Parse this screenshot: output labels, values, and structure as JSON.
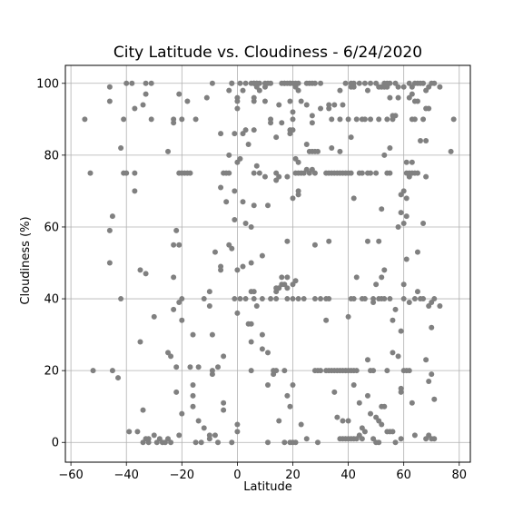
{
  "chart_data": {
    "type": "scatter",
    "title": "City Latitude vs. Cloudiness - 6/24/2020",
    "xlabel": "Latitude",
    "ylabel": "Cloudiness (%)",
    "xlim": [
      -62,
      84
    ],
    "ylim": [
      -5.5,
      105
    ],
    "xticks": [
      -60,
      -40,
      -20,
      0,
      20,
      40,
      60,
      80
    ],
    "yticks": [
      0,
      20,
      40,
      60,
      80,
      100
    ],
    "grid": true,
    "marker_color": "#808080",
    "points": [
      [
        -55,
        90
      ],
      [
        -53,
        75
      ],
      [
        -52,
        20
      ],
      [
        -46,
        99
      ],
      [
        -46,
        95
      ],
      [
        -46,
        59
      ],
      [
        -46,
        50
      ],
      [
        -45,
        63
      ],
      [
        -45,
        20
      ],
      [
        -43,
        18
      ],
      [
        -42,
        40
      ],
      [
        -42,
        82
      ],
      [
        -41,
        75
      ],
      [
        -41,
        90
      ],
      [
        -40,
        75
      ],
      [
        -40,
        100
      ],
      [
        -39,
        3
      ],
      [
        -38,
        100
      ],
      [
        -37,
        93
      ],
      [
        -37,
        75
      ],
      [
        -37,
        70
      ],
      [
        -36,
        3
      ],
      [
        -35,
        28
      ],
      [
        -35,
        48
      ],
      [
        -34,
        94
      ],
      [
        -34,
        9
      ],
      [
        -34,
        0
      ],
      [
        -33,
        97
      ],
      [
        -33,
        100
      ],
      [
        -33,
        47
      ],
      [
        -33,
        1
      ],
      [
        -32,
        1
      ],
      [
        -32,
        0
      ],
      [
        -31,
        100
      ],
      [
        -31,
        90
      ],
      [
        -30,
        35
      ],
      [
        -30,
        2
      ],
      [
        -29,
        0
      ],
      [
        -28,
        1
      ],
      [
        -27,
        0
      ],
      [
        -26,
        0
      ],
      [
        -25,
        1
      ],
      [
        -25,
        81
      ],
      [
        -25,
        25
      ],
      [
        -24,
        24
      ],
      [
        -24,
        0
      ],
      [
        -23,
        90
      ],
      [
        -23,
        89
      ],
      [
        -23,
        55
      ],
      [
        -23,
        46
      ],
      [
        -23,
        37
      ],
      [
        -22,
        21
      ],
      [
        -22,
        14
      ],
      [
        -22,
        59
      ],
      [
        -21,
        55
      ],
      [
        -21,
        39
      ],
      [
        -21,
        2
      ],
      [
        -21,
        97
      ],
      [
        -21,
        75
      ],
      [
        -20,
        40
      ],
      [
        -20,
        34
      ],
      [
        -20,
        8
      ],
      [
        -20,
        90
      ],
      [
        -20,
        75
      ],
      [
        -19,
        75
      ],
      [
        -18,
        95
      ],
      [
        -18,
        75
      ],
      [
        -17,
        75
      ],
      [
        -17,
        21
      ],
      [
        -16,
        16
      ],
      [
        -16,
        13
      ],
      [
        -16,
        10
      ],
      [
        -16,
        30
      ],
      [
        -15,
        90
      ],
      [
        -15,
        0
      ],
      [
        -14,
        21
      ],
      [
        -14,
        6
      ],
      [
        -13,
        0
      ],
      [
        -12,
        4
      ],
      [
        -12,
        40
      ],
      [
        -11,
        96
      ],
      [
        -10,
        1
      ],
      [
        -10,
        2
      ],
      [
        -10,
        38
      ],
      [
        -10,
        42
      ],
      [
        -9,
        100
      ],
      [
        -9,
        30
      ],
      [
        -9,
        20
      ],
      [
        -9,
        19
      ],
      [
        -8,
        2
      ],
      [
        -8,
        53
      ],
      [
        -7,
        21
      ],
      [
        -7,
        0
      ],
      [
        -6,
        86
      ],
      [
        -6,
        71
      ],
      [
        -6,
        48
      ],
      [
        -6,
        49
      ],
      [
        -5,
        24
      ],
      [
        -5,
        11
      ],
      [
        -5,
        9
      ],
      [
        -5,
        75
      ],
      [
        -4,
        75
      ],
      [
        -4,
        67
      ],
      [
        -3,
        98
      ],
      [
        -3,
        80
      ],
      [
        -3,
        55
      ],
      [
        -3,
        75
      ],
      [
        -2,
        54
      ],
      [
        -2,
        100
      ],
      [
        -2,
        100
      ],
      [
        -2,
        0
      ],
      [
        -1,
        86
      ],
      [
        -1,
        70
      ],
      [
        -1,
        62
      ],
      [
        -1,
        40
      ],
      [
        0,
        93
      ],
      [
        0,
        95
      ],
      [
        0,
        96
      ],
      [
        0,
        78
      ],
      [
        0,
        48
      ],
      [
        0,
        36
      ],
      [
        0,
        5
      ],
      [
        0,
        3
      ],
      [
        1,
        79
      ],
      [
        1,
        100
      ],
      [
        1,
        40
      ],
      [
        2,
        98
      ],
      [
        2,
        86
      ],
      [
        2,
        67
      ],
      [
        2,
        49
      ],
      [
        3,
        100
      ],
      [
        3,
        87
      ],
      [
        3,
        61
      ],
      [
        3,
        40
      ],
      [
        4,
        83
      ],
      [
        4,
        33
      ],
      [
        5,
        100
      ],
      [
        5,
        60
      ],
      [
        5,
        50
      ],
      [
        5,
        42
      ],
      [
        5,
        33
      ],
      [
        5,
        28
      ],
      [
        5,
        20
      ],
      [
        6,
        100
      ],
      [
        6,
        100
      ],
      [
        6,
        100
      ],
      [
        6,
        96
      ],
      [
        6,
        95
      ],
      [
        6,
        87
      ],
      [
        6,
        75
      ],
      [
        6,
        66
      ],
      [
        6,
        42
      ],
      [
        6,
        40
      ],
      [
        7,
        100
      ],
      [
        7,
        100
      ],
      [
        7,
        99
      ],
      [
        7,
        77
      ],
      [
        7,
        38
      ],
      [
        8,
        100
      ],
      [
        8,
        98
      ],
      [
        8,
        75
      ],
      [
        9,
        52
      ],
      [
        9,
        40
      ],
      [
        9,
        30
      ],
      [
        9,
        26
      ],
      [
        10,
        99
      ],
      [
        10,
        95
      ],
      [
        10,
        100
      ],
      [
        10,
        74
      ],
      [
        11,
        100
      ],
      [
        11,
        66
      ],
      [
        11,
        16
      ],
      [
        11,
        25
      ],
      [
        11,
        0
      ],
      [
        12,
        100
      ],
      [
        12,
        89
      ],
      [
        12,
        90
      ],
      [
        12,
        40
      ],
      [
        13,
        20
      ],
      [
        13,
        19
      ],
      [
        14,
        85
      ],
      [
        14,
        75
      ],
      [
        14,
        73
      ],
      [
        14,
        42
      ],
      [
        14,
        40
      ],
      [
        14,
        20
      ],
      [
        14,
        43
      ],
      [
        15,
        94
      ],
      [
        15,
        74
      ],
      [
        15,
        43
      ],
      [
        15,
        6
      ],
      [
        16,
        100
      ],
      [
        16,
        89
      ],
      [
        16,
        46
      ],
      [
        16,
        44
      ],
      [
        17,
        44
      ],
      [
        17,
        100
      ],
      [
        17,
        100
      ],
      [
        17,
        20
      ],
      [
        17,
        0
      ],
      [
        18,
        100
      ],
      [
        18,
        74
      ],
      [
        18,
        56
      ],
      [
        18,
        46
      ],
      [
        18,
        43
      ],
      [
        18,
        40
      ],
      [
        18,
        13
      ],
      [
        19,
        100
      ],
      [
        19,
        100
      ],
      [
        19,
        95
      ],
      [
        19,
        87
      ],
      [
        19,
        86
      ],
      [
        19,
        10
      ],
      [
        19,
        0
      ],
      [
        20,
        100
      ],
      [
        20,
        92
      ],
      [
        20,
        90
      ],
      [
        20,
        87
      ],
      [
        20,
        68
      ],
      [
        20,
        44
      ],
      [
        20,
        40
      ],
      [
        20,
        16
      ],
      [
        20,
        0
      ],
      [
        21,
        100
      ],
      [
        21,
        99
      ],
      [
        21,
        79
      ],
      [
        21,
        75
      ],
      [
        21,
        45
      ],
      [
        21,
        0
      ],
      [
        22,
        100
      ],
      [
        22,
        98
      ],
      [
        22,
        78
      ],
      [
        22,
        75
      ],
      [
        22,
        70
      ],
      [
        22,
        69
      ],
      [
        22,
        40
      ],
      [
        23,
        95
      ],
      [
        23,
        75
      ],
      [
        23,
        5
      ],
      [
        24,
        75
      ],
      [
        24,
        40
      ],
      [
        25,
        100
      ],
      [
        25,
        94
      ],
      [
        25,
        83
      ],
      [
        25,
        76
      ],
      [
        25,
        1
      ],
      [
        26,
        100
      ],
      [
        26,
        81
      ],
      [
        26,
        75
      ],
      [
        27,
        100
      ],
      [
        27,
        91
      ],
      [
        27,
        89
      ],
      [
        27,
        81
      ],
      [
        27,
        76
      ],
      [
        28,
        100
      ],
      [
        28,
        81
      ],
      [
        28,
        75
      ],
      [
        28,
        55
      ],
      [
        28,
        40
      ],
      [
        28,
        20
      ],
      [
        29,
        81
      ],
      [
        29,
        20
      ],
      [
        29,
        0
      ],
      [
        30,
        100
      ],
      [
        30,
        93
      ],
      [
        30,
        40
      ],
      [
        30,
        20
      ],
      [
        32,
        75
      ],
      [
        32,
        40
      ],
      [
        32,
        34
      ],
      [
        32,
        20
      ],
      [
        33,
        94
      ],
      [
        33,
        93
      ],
      [
        33,
        75
      ],
      [
        33,
        56
      ],
      [
        33,
        40
      ],
      [
        33,
        20
      ],
      [
        34,
        90
      ],
      [
        34,
        82
      ],
      [
        34,
        75
      ],
      [
        34,
        20
      ],
      [
        35,
        94
      ],
      [
        35,
        75
      ],
      [
        35,
        14
      ],
      [
        35,
        20
      ],
      [
        36,
        75
      ],
      [
        36,
        20
      ],
      [
        36,
        7
      ],
      [
        37,
        98
      ],
      [
        37,
        90
      ],
      [
        37,
        81
      ],
      [
        37,
        75
      ],
      [
        37,
        20
      ],
      [
        37,
        1
      ],
      [
        38,
        94
      ],
      [
        38,
        75
      ],
      [
        38,
        20
      ],
      [
        38,
        6
      ],
      [
        38,
        1
      ],
      [
        39,
        100
      ],
      [
        39,
        75
      ],
      [
        39,
        20
      ],
      [
        39,
        1
      ],
      [
        40,
        90
      ],
      [
        40,
        75
      ],
      [
        40,
        35
      ],
      [
        40,
        20
      ],
      [
        40,
        6
      ],
      [
        40,
        1
      ],
      [
        41,
        100
      ],
      [
        41,
        99
      ],
      [
        41,
        85
      ],
      [
        41,
        75
      ],
      [
        41,
        40
      ],
      [
        41,
        20
      ],
      [
        41,
        1
      ],
      [
        42,
        100
      ],
      [
        42,
        99
      ],
      [
        42,
        68
      ],
      [
        42,
        40
      ],
      [
        42,
        20
      ],
      [
        42,
        16
      ],
      [
        42,
        1
      ],
      [
        43,
        90
      ],
      [
        43,
        46
      ],
      [
        43,
        20
      ],
      [
        43,
        1
      ],
      [
        44,
        100
      ],
      [
        44,
        75
      ],
      [
        44,
        11
      ],
      [
        44,
        2
      ],
      [
        45,
        90
      ],
      [
        45,
        75
      ],
      [
        45,
        40
      ],
      [
        45,
        4
      ],
      [
        45,
        1
      ],
      [
        46,
        100
      ],
      [
        46,
        90
      ],
      [
        46,
        40
      ],
      [
        46,
        3
      ],
      [
        47,
        98
      ],
      [
        47,
        75
      ],
      [
        47,
        56
      ],
      [
        47,
        23
      ],
      [
        47,
        13
      ],
      [
        48,
        100
      ],
      [
        48,
        90
      ],
      [
        48,
        75
      ],
      [
        48,
        20
      ],
      [
        48,
        8
      ],
      [
        49,
        40
      ],
      [
        49,
        39
      ],
      [
        49,
        20
      ],
      [
        49,
        1
      ],
      [
        50,
        100
      ],
      [
        50,
        75
      ],
      [
        50,
        44
      ],
      [
        50,
        7
      ],
      [
        50,
        0
      ],
      [
        51,
        99
      ],
      [
        51,
        90
      ],
      [
        51,
        56
      ],
      [
        51,
        40
      ],
      [
        51,
        6
      ],
      [
        51,
        0
      ],
      [
        52,
        99
      ],
      [
        52,
        65
      ],
      [
        52,
        46
      ],
      [
        52,
        40
      ],
      [
        52,
        10
      ],
      [
        52,
        5
      ],
      [
        53,
        100
      ],
      [
        53,
        99
      ],
      [
        53,
        80
      ],
      [
        53,
        48
      ],
      [
        53,
        40
      ],
      [
        53,
        10
      ],
      [
        54,
        100
      ],
      [
        54,
        99
      ],
      [
        54,
        90
      ],
      [
        54,
        75
      ],
      [
        54,
        20
      ],
      [
        54,
        3
      ],
      [
        55,
        100
      ],
      [
        55,
        96
      ],
      [
        55,
        82
      ],
      [
        55,
        75
      ],
      [
        55,
        40
      ],
      [
        55,
        3
      ],
      [
        56,
        91
      ],
      [
        56,
        90
      ],
      [
        56,
        34
      ],
      [
        56,
        25
      ],
      [
        56,
        3
      ],
      [
        57,
        100
      ],
      [
        57,
        91
      ],
      [
        57,
        37
      ],
      [
        57,
        0
      ],
      [
        58,
        99
      ],
      [
        58,
        96
      ],
      [
        58,
        60
      ],
      [
        58,
        24
      ],
      [
        59,
        69
      ],
      [
        59,
        64
      ],
      [
        59,
        31
      ],
      [
        59,
        15
      ],
      [
        59,
        14
      ],
      [
        59,
        1
      ],
      [
        60,
        99
      ],
      [
        60,
        70
      ],
      [
        60,
        61
      ],
      [
        60,
        44
      ],
      [
        60,
        40
      ],
      [
        60,
        20
      ],
      [
        61,
        78
      ],
      [
        61,
        75
      ],
      [
        61,
        68
      ],
      [
        61,
        63
      ],
      [
        61,
        51
      ],
      [
        61,
        20
      ],
      [
        62,
        100
      ],
      [
        62,
        96
      ],
      [
        62,
        75
      ],
      [
        62,
        74
      ],
      [
        62,
        39
      ],
      [
        62,
        20
      ],
      [
        63,
        99
      ],
      [
        63,
        97
      ],
      [
        63,
        90
      ],
      [
        63,
        75
      ],
      [
        63,
        78
      ],
      [
        63,
        11
      ],
      [
        64,
        100
      ],
      [
        64,
        95
      ],
      [
        64,
        90
      ],
      [
        64,
        75
      ],
      [
        64,
        40
      ],
      [
        64,
        2
      ],
      [
        65,
        100
      ],
      [
        65,
        95
      ],
      [
        65,
        75
      ],
      [
        65,
        53
      ],
      [
        65,
        42
      ],
      [
        66,
        100
      ],
      [
        66,
        84
      ],
      [
        66,
        40
      ],
      [
        67,
        100
      ],
      [
        67,
        90
      ],
      [
        67,
        61
      ],
      [
        67,
        40
      ],
      [
        68,
        98
      ],
      [
        68,
        93
      ],
      [
        68,
        84
      ],
      [
        68,
        74
      ],
      [
        68,
        23
      ],
      [
        68,
        1
      ],
      [
        69,
        99
      ],
      [
        69,
        93
      ],
      [
        69,
        38
      ],
      [
        69,
        17
      ],
      [
        69,
        2
      ],
      [
        70,
        100
      ],
      [
        70,
        39
      ],
      [
        70,
        32
      ],
      [
        70,
        19
      ],
      [
        70,
        1
      ],
      [
        71,
        100
      ],
      [
        71,
        40
      ],
      [
        71,
        12
      ],
      [
        71,
        1
      ],
      [
        73,
        99
      ],
      [
        73,
        38
      ],
      [
        77,
        81
      ],
      [
        78,
        90
      ]
    ]
  }
}
